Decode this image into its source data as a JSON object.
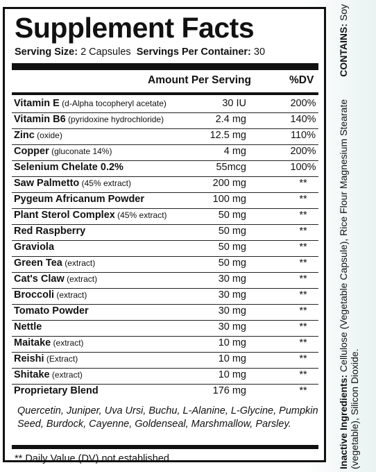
{
  "label": {
    "title": "Supplement Facts",
    "serving_size_label": "Serving Size:",
    "serving_size_value": "2 Capsules",
    "servings_per_container_label": "Servings Per Container:",
    "servings_per_container_value": "30",
    "header_amount": "Amount Per Serving",
    "header_dv": "%DV",
    "rows": [
      {
        "name": "Vitamin E",
        "detail": " (d-Alpha tocopheryl acetate)",
        "amount": "30 IU",
        "dv": "200%"
      },
      {
        "name": "Vitamin B6",
        "detail": " (pyridoxine hydrochloride)",
        "amount": "2.4 mg",
        "dv": "140%"
      },
      {
        "name": "Zinc",
        "detail": " (oxide)",
        "amount": "12.5 mg",
        "dv": "110%"
      },
      {
        "name": "Copper",
        "detail": " (gluconate 14%)",
        "amount": "4 mg",
        "dv": "200%"
      },
      {
        "name": "Selenium Chelate 0.2%",
        "detail": "",
        "amount": "55mcg",
        "dv": "100%"
      },
      {
        "name": "Saw Palmetto",
        "detail": " (45% extract)",
        "amount": "200 mg",
        "dv": "**"
      },
      {
        "name": "Pygeum Africanum Powder",
        "detail": "",
        "amount": "100 mg",
        "dv": "**"
      },
      {
        "name": "Plant Sterol Complex",
        "detail": " (45% extract)",
        "amount": "50 mg",
        "dv": "**"
      },
      {
        "name": "Red Raspberry",
        "detail": "",
        "amount": "50 mg",
        "dv": "**"
      },
      {
        "name": "Graviola",
        "detail": "",
        "amount": "50 mg",
        "dv": "**"
      },
      {
        "name": "Green Tea",
        "detail": " (extract)",
        "amount": "50 mg",
        "dv": "**"
      },
      {
        "name": "Cat's Claw",
        "detail": " (extract)",
        "amount": "30 mg",
        "dv": "**"
      },
      {
        "name": "Broccoli",
        "detail": " (extract)",
        "amount": "30 mg",
        "dv": "**"
      },
      {
        "name": "Tomato Powder",
        "detail": "",
        "amount": "30 mg",
        "dv": "**"
      },
      {
        "name": "Nettle",
        "detail": "",
        "amount": "30 mg",
        "dv": "**"
      },
      {
        "name": "Maitake",
        "detail": " (extract)",
        "amount": "10 mg",
        "dv": "**"
      },
      {
        "name": "Reishi",
        "detail": " (Extract)",
        "amount": "10 mg",
        "dv": "**"
      },
      {
        "name": "Shitake",
        "detail": " (extract)",
        "amount": "10 mg",
        "dv": "**"
      },
      {
        "name": "Proprietary Blend",
        "detail": "",
        "amount": "176 mg",
        "dv": "**"
      }
    ],
    "blend_ingredients": "Quercetin, Juniper, Uva Ursi, Buchu, L-Alanine, L-Glycine, Pumpkin Seed, Burdock, Cayenne, Goldenseal, Marshmallow, Parsley.",
    "footnote": "** Daily Value (DV) not established"
  },
  "side": {
    "inactive_label": "Inactive Ingredients:",
    "inactive_text": " Cellulose (Vegetable Capsule), Rice Flour Magnesium Stearate (vegetable), Silicon Dioxide.",
    "contains_label": "CONTAINS:",
    "contains_text": " Soy"
  }
}
